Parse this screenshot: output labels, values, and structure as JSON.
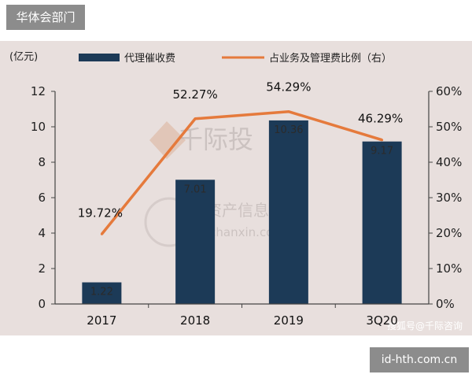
{
  "header_tag": "华体会部门",
  "footer_badge": "id-hth.com.cn",
  "watermarks": {
    "brand_cn": "千际投",
    "site_cn": "资产信息网",
    "site_url": "ichanxin.com",
    "source": "搜狐号@千际咨询"
  },
  "chart_data": {
    "type": "bar",
    "y_unit_left": "(亿元)",
    "categories": [
      "2017",
      "2018",
      "2019",
      "3Q20"
    ],
    "ylim_left": [
      0,
      12
    ],
    "yticks_left": [
      "0",
      "2",
      "4",
      "6",
      "8",
      "10",
      "12"
    ],
    "ylim_right": [
      0,
      60
    ],
    "yticks_right": [
      "0%",
      "10%",
      "20%",
      "30%",
      "40%",
      "50%",
      "60%"
    ],
    "series": [
      {
        "name": "代理催收费",
        "type": "bar",
        "color": "#1c3a57",
        "values": [
          1.22,
          7.01,
          10.36,
          9.17
        ],
        "labels": [
          "1.22",
          "7.01",
          "10.36",
          "9.17"
        ]
      },
      {
        "name": "占业务及管理费比例（右）",
        "type": "line",
        "axis": "right",
        "color": "#e57a3c",
        "values": [
          19.72,
          52.27,
          54.29,
          46.29
        ],
        "labels": [
          "19.72%",
          "52.27%",
          "54.29%",
          "46.29%"
        ]
      }
    ],
    "legend_position": "top"
  }
}
